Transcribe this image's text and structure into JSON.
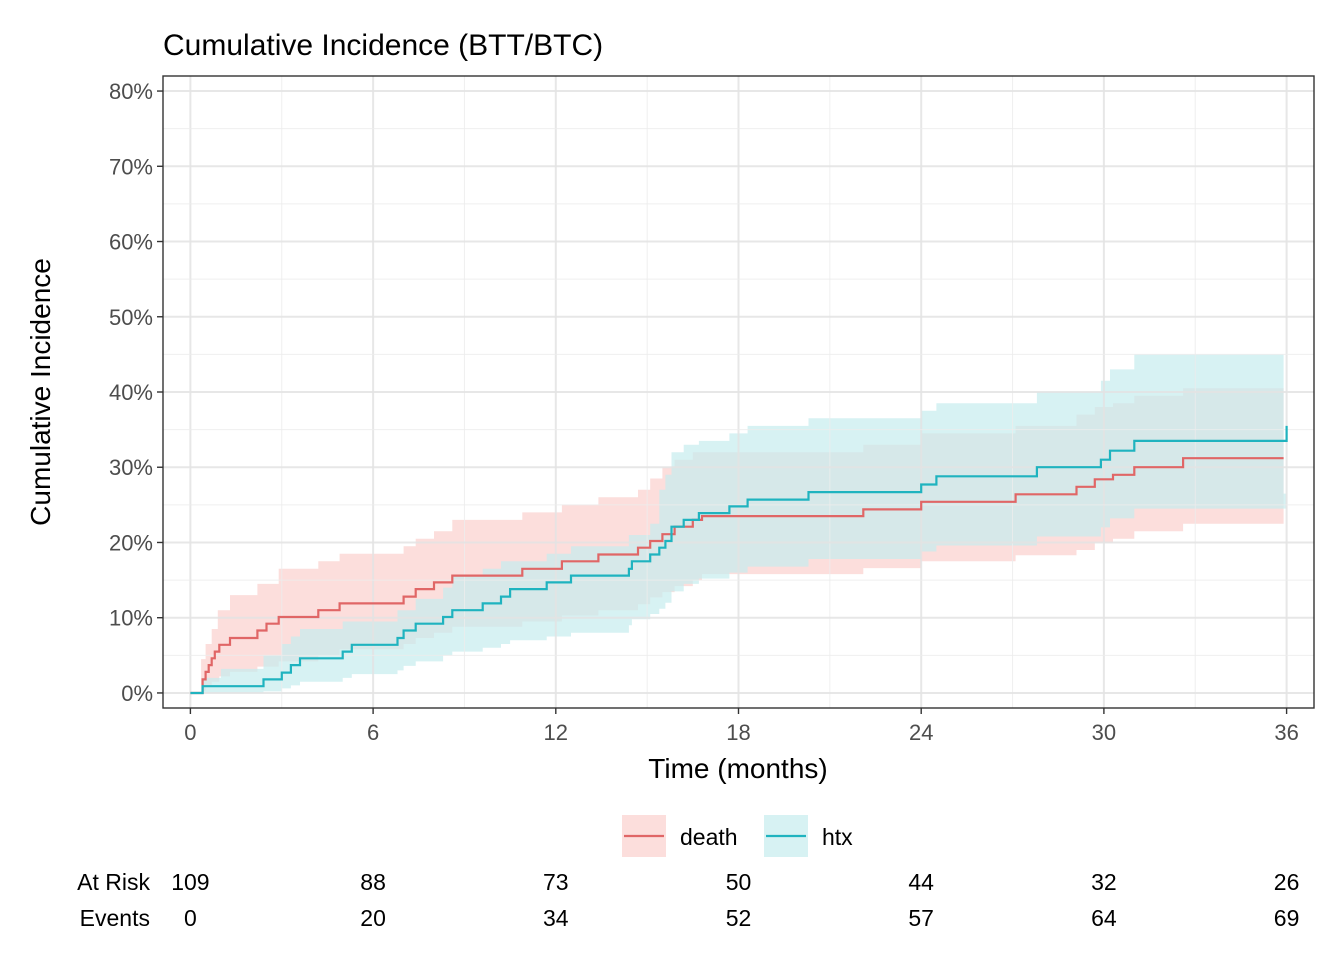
{
  "chart_data": {
    "type": "line",
    "title": "Cumulative Incidence (BTT/BTC)",
    "xlabel": "Time (months)",
    "ylabel": "Cumulative Incidence",
    "xlim": [
      -0.9,
      36.9
    ],
    "ylim": [
      -0.02,
      0.82
    ],
    "x_ticks": [
      0,
      6,
      12,
      18,
      24,
      30,
      36
    ],
    "x_tick_labels": [
      "0",
      "6",
      "12",
      "18",
      "24",
      "30",
      "36"
    ],
    "y_ticks": [
      0,
      0.1,
      0.2,
      0.3,
      0.4,
      0.5,
      0.6,
      0.7,
      0.8
    ],
    "y_tick_labels": [
      "0%",
      "10%",
      "20%",
      "30%",
      "40%",
      "50%",
      "60%",
      "70%",
      "80%"
    ],
    "grid": true,
    "legend_position": "bottom",
    "series": [
      {
        "name": "death",
        "color": "#e06666",
        "band_color": "#fbd0cd",
        "step": [
          [
            0,
            0
          ],
          [
            0.35,
            0
          ],
          [
            0.4,
            0.018
          ],
          [
            0.5,
            0.028
          ],
          [
            0.6,
            0.037
          ],
          [
            0.7,
            0.046
          ],
          [
            0.8,
            0.055
          ],
          [
            0.95,
            0.064
          ],
          [
            1.3,
            0.073
          ],
          [
            2.2,
            0.083
          ],
          [
            2.5,
            0.092
          ],
          [
            2.9,
            0.101
          ],
          [
            4.2,
            0.11
          ],
          [
            4.9,
            0.119
          ],
          [
            6.3,
            0.119
          ],
          [
            7.0,
            0.128
          ],
          [
            7.4,
            0.138
          ],
          [
            8.0,
            0.147
          ],
          [
            8.6,
            0.156
          ],
          [
            10.9,
            0.165
          ],
          [
            12.2,
            0.175
          ],
          [
            13.4,
            0.184
          ],
          [
            14.7,
            0.193
          ],
          [
            15.1,
            0.202
          ],
          [
            15.5,
            0.211
          ],
          [
            15.9,
            0.221
          ],
          [
            16.5,
            0.23
          ],
          [
            16.8,
            0.235
          ],
          [
            22.1,
            0.244
          ],
          [
            24.0,
            0.254
          ],
          [
            27.1,
            0.264
          ],
          [
            29.1,
            0.274
          ],
          [
            29.7,
            0.284
          ],
          [
            30.3,
            0.29
          ],
          [
            31.0,
            0.3
          ],
          [
            32.6,
            0.312
          ],
          [
            35.9,
            0.312
          ]
        ],
        "band_upper": [
          [
            0.3,
            0
          ],
          [
            0.35,
            0.045
          ],
          [
            0.5,
            0.065
          ],
          [
            0.7,
            0.085
          ],
          [
            0.9,
            0.11
          ],
          [
            1.3,
            0.13
          ],
          [
            2.2,
            0.145
          ],
          [
            2.9,
            0.165
          ],
          [
            4.2,
            0.175
          ],
          [
            4.9,
            0.185
          ],
          [
            7.0,
            0.195
          ],
          [
            7.4,
            0.205
          ],
          [
            8.0,
            0.215
          ],
          [
            8.6,
            0.23
          ],
          [
            10.9,
            0.24
          ],
          [
            12.2,
            0.25
          ],
          [
            13.4,
            0.26
          ],
          [
            14.7,
            0.27
          ],
          [
            15.1,
            0.285
          ],
          [
            15.5,
            0.3
          ],
          [
            15.9,
            0.31
          ],
          [
            16.5,
            0.32
          ],
          [
            22.1,
            0.33
          ],
          [
            24.0,
            0.345
          ],
          [
            27.1,
            0.355
          ],
          [
            29.1,
            0.37
          ],
          [
            29.7,
            0.38
          ],
          [
            30.3,
            0.385
          ],
          [
            31.0,
            0.395
          ],
          [
            32.6,
            0.405
          ],
          [
            35.9,
            0.405
          ]
        ],
        "band_lower": [
          [
            0.3,
            0
          ],
          [
            0.4,
            0.003
          ],
          [
            0.5,
            0.008
          ],
          [
            0.7,
            0.015
          ],
          [
            0.95,
            0.022
          ],
          [
            1.3,
            0.028
          ],
          [
            2.2,
            0.035
          ],
          [
            2.9,
            0.042
          ],
          [
            4.2,
            0.05
          ],
          [
            4.9,
            0.058
          ],
          [
            7.0,
            0.065
          ],
          [
            7.4,
            0.073
          ],
          [
            8.0,
            0.08
          ],
          [
            8.6,
            0.088
          ],
          [
            10.9,
            0.095
          ],
          [
            12.2,
            0.103
          ],
          [
            13.4,
            0.11
          ],
          [
            14.7,
            0.118
          ],
          [
            15.1,
            0.127
          ],
          [
            15.5,
            0.134
          ],
          [
            15.9,
            0.142
          ],
          [
            16.5,
            0.15
          ],
          [
            16.8,
            0.158
          ],
          [
            22.1,
            0.166
          ],
          [
            24.0,
            0.175
          ],
          [
            27.1,
            0.183
          ],
          [
            29.1,
            0.19
          ],
          [
            29.7,
            0.2
          ],
          [
            30.3,
            0.205
          ],
          [
            31.0,
            0.215
          ],
          [
            32.6,
            0.225
          ],
          [
            35.9,
            0.225
          ]
        ]
      },
      {
        "name": "htx",
        "color": "#1fb3bf",
        "band_color": "#c6ecee",
        "step": [
          [
            0,
            0
          ],
          [
            0.35,
            0
          ],
          [
            0.4,
            0.009
          ],
          [
            2.4,
            0.018
          ],
          [
            3.0,
            0.027
          ],
          [
            3.3,
            0.037
          ],
          [
            3.6,
            0.046
          ],
          [
            5.0,
            0.055
          ],
          [
            5.3,
            0.064
          ],
          [
            6.8,
            0.073
          ],
          [
            7.0,
            0.083
          ],
          [
            7.4,
            0.092
          ],
          [
            8.3,
            0.101
          ],
          [
            8.6,
            0.11
          ],
          [
            9.6,
            0.119
          ],
          [
            10.2,
            0.128
          ],
          [
            10.5,
            0.138
          ],
          [
            11.7,
            0.147
          ],
          [
            12.5,
            0.156
          ],
          [
            14.4,
            0.165
          ],
          [
            14.5,
            0.175
          ],
          [
            15.1,
            0.184
          ],
          [
            15.4,
            0.193
          ],
          [
            15.6,
            0.202
          ],
          [
            15.8,
            0.221
          ],
          [
            16.2,
            0.23
          ],
          [
            16.7,
            0.239
          ],
          [
            17.7,
            0.248
          ],
          [
            18.3,
            0.257
          ],
          [
            20.3,
            0.267
          ],
          [
            24.0,
            0.277
          ],
          [
            24.5,
            0.288
          ],
          [
            27.8,
            0.3
          ],
          [
            29.9,
            0.31
          ],
          [
            30.2,
            0.322
          ],
          [
            31.0,
            0.335
          ],
          [
            35.9,
            0.335
          ],
          [
            36.0,
            0.355
          ]
        ],
        "band_upper": [
          [
            0.3,
            0
          ],
          [
            0.4,
            0.02
          ],
          [
            1.0,
            0.032
          ],
          [
            2.4,
            0.05
          ],
          [
            3.0,
            0.065
          ],
          [
            3.3,
            0.075
          ],
          [
            3.6,
            0.085
          ],
          [
            5.0,
            0.095
          ],
          [
            6.8,
            0.11
          ],
          [
            7.4,
            0.125
          ],
          [
            8.3,
            0.14
          ],
          [
            8.6,
            0.155
          ],
          [
            9.6,
            0.165
          ],
          [
            10.2,
            0.175
          ],
          [
            11.7,
            0.185
          ],
          [
            12.5,
            0.195
          ],
          [
            14.4,
            0.21
          ],
          [
            15.1,
            0.225
          ],
          [
            15.4,
            0.27
          ],
          [
            15.6,
            0.29
          ],
          [
            15.8,
            0.32
          ],
          [
            16.2,
            0.33
          ],
          [
            16.7,
            0.335
          ],
          [
            17.7,
            0.345
          ],
          [
            18.3,
            0.355
          ],
          [
            20.3,
            0.365
          ],
          [
            24.0,
            0.375
          ],
          [
            24.5,
            0.385
          ],
          [
            27.8,
            0.4
          ],
          [
            29.9,
            0.415
          ],
          [
            30.2,
            0.43
          ],
          [
            31.0,
            0.45
          ],
          [
            35.9,
            0.45
          ]
        ],
        "band_lower": [
          [
            0.3,
            0
          ],
          [
            0.4,
            0
          ],
          [
            2.4,
            0.002
          ],
          [
            3.0,
            0.006
          ],
          [
            3.3,
            0.01
          ],
          [
            3.6,
            0.015
          ],
          [
            5.0,
            0.02
          ],
          [
            5.3,
            0.025
          ],
          [
            6.8,
            0.03
          ],
          [
            7.0,
            0.036
          ],
          [
            7.4,
            0.042
          ],
          [
            8.3,
            0.05
          ],
          [
            8.6,
            0.055
          ],
          [
            9.6,
            0.06
          ],
          [
            10.2,
            0.065
          ],
          [
            10.5,
            0.07
          ],
          [
            11.7,
            0.075
          ],
          [
            12.5,
            0.08
          ],
          [
            14.4,
            0.09
          ],
          [
            14.5,
            0.098
          ],
          [
            15.1,
            0.105
          ],
          [
            15.4,
            0.112
          ],
          [
            15.6,
            0.12
          ],
          [
            15.8,
            0.135
          ],
          [
            16.2,
            0.145
          ],
          [
            16.7,
            0.152
          ],
          [
            17.7,
            0.16
          ],
          [
            18.3,
            0.168
          ],
          [
            20.3,
            0.178
          ],
          [
            24.0,
            0.188
          ],
          [
            24.5,
            0.196
          ],
          [
            27.8,
            0.208
          ],
          [
            29.9,
            0.22
          ],
          [
            30.2,
            0.232
          ],
          [
            31.0,
            0.245
          ],
          [
            35.9,
            0.245
          ],
          [
            36.0,
            0.265
          ]
        ]
      }
    ],
    "risk_table": {
      "times": [
        0,
        6,
        12,
        18,
        24,
        30,
        36
      ],
      "rows": [
        {
          "label": "At Risk",
          "values": [
            "109",
            "88",
            "73",
            "50",
            "44",
            "32",
            "26"
          ]
        },
        {
          "label": "Events",
          "values": [
            "0",
            "20",
            "34",
            "52",
            "57",
            "64",
            "69"
          ]
        }
      ]
    }
  }
}
